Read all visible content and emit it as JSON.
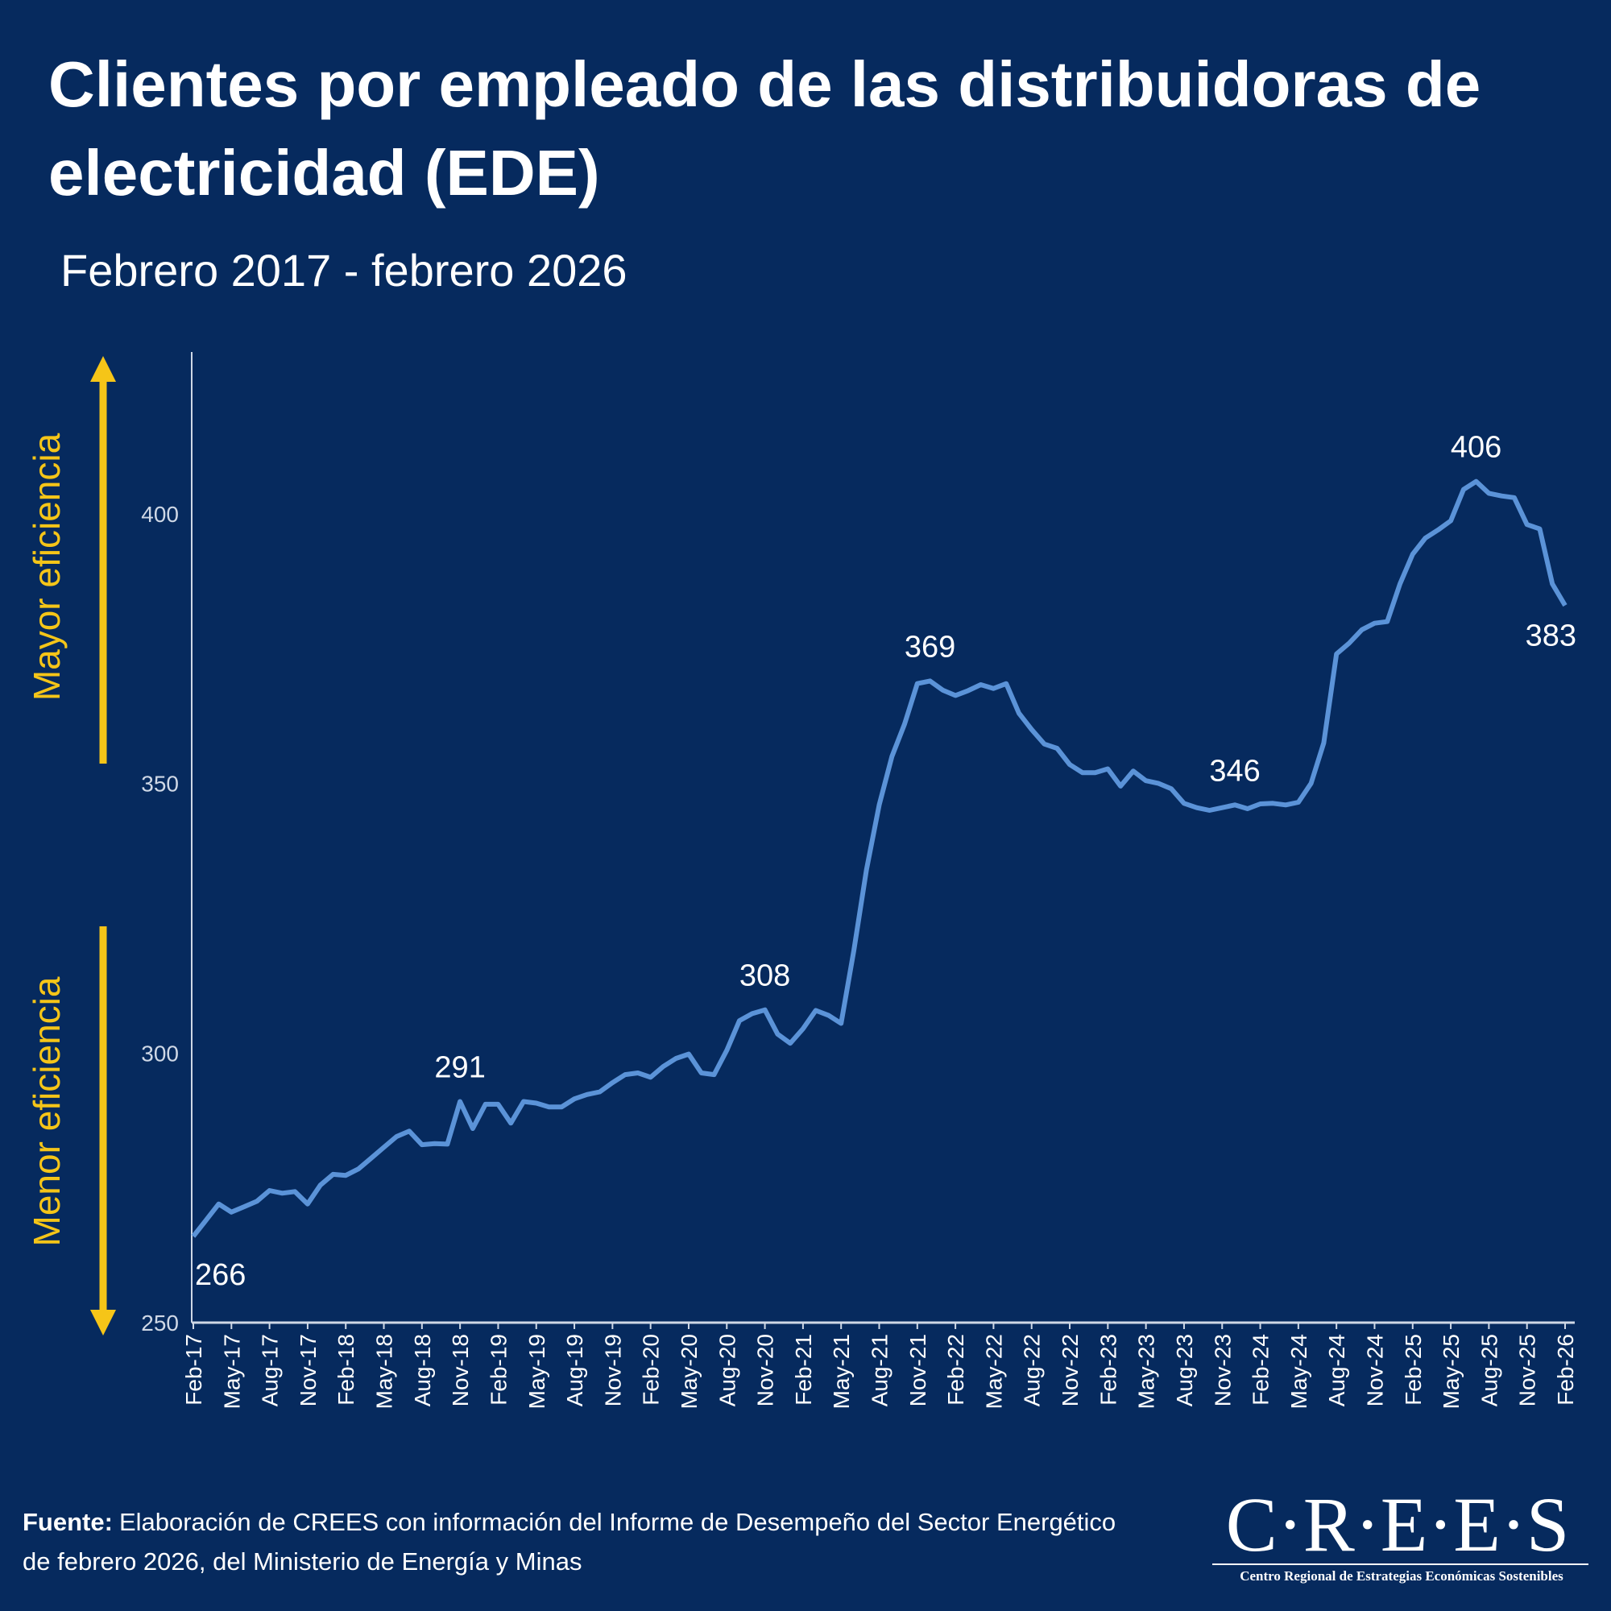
{
  "chart_data": {
    "type": "line",
    "title": [
      "Clientes por empleado de las distribuidoras de",
      "electricidad (EDE)"
    ],
    "subtitle": "Febrero 2017 - febrero 2026",
    "annotations": {
      "up": "Mayor eficiencia",
      "down": "Menor eficiencia"
    },
    "categories": [
      "Feb-17",
      null,
      null,
      "May-17",
      null,
      null,
      "Aug-17",
      null,
      null,
      "Nov-17",
      null,
      null,
      "Feb-18",
      null,
      null,
      "May-18",
      null,
      null,
      "Aug-18",
      null,
      null,
      "Nov-18",
      null,
      null,
      "Feb-19",
      null,
      null,
      "May-19",
      null,
      null,
      "Aug-19",
      null,
      null,
      "Nov-19",
      null,
      null,
      "Feb-20",
      null,
      null,
      "May-20",
      null,
      null,
      "Aug-20",
      null,
      null,
      "Nov-20",
      null,
      null,
      "Feb-21",
      null,
      null,
      "May-21",
      null,
      null,
      "Aug-21",
      null,
      null,
      "Nov-21",
      null,
      null,
      "Feb-22",
      null,
      null,
      "May-22",
      null,
      null,
      "Aug-22",
      null,
      null,
      "Nov-22",
      null,
      null,
      "Feb-23",
      null,
      null,
      "May-23",
      null,
      null,
      "Aug-23",
      null,
      null,
      "Nov-23",
      null,
      null,
      "Feb-24",
      null,
      null,
      "May-24",
      null,
      null,
      "Aug-24",
      null,
      null,
      "Nov-24",
      null,
      null,
      "Feb-25",
      null,
      null,
      "May-25",
      null,
      null,
      "Aug-25",
      null,
      null,
      "Nov-25",
      null,
      null,
      "Feb-26"
    ],
    "values": [
      266,
      269,
      272,
      270.5,
      271.5,
      272.5,
      274.5,
      274,
      274.3,
      272,
      275.5,
      277.5,
      277.3,
      278.5,
      280.5,
      282.5,
      284.5,
      285.5,
      283,
      283.2,
      283.1,
      291,
      286,
      290.5,
      290.5,
      287,
      291,
      290.7,
      290,
      290,
      291.5,
      292.3,
      292.8,
      294.5,
      296,
      296.3,
      295.5,
      297.5,
      299,
      299.8,
      296.3,
      296,
      300.5,
      306,
      307.3,
      308,
      303.5,
      301.8,
      304.5,
      307.9,
      307,
      305.5,
      319,
      334,
      346,
      355,
      361,
      368.5,
      369,
      367.3,
      366.3,
      367.2,
      368.3,
      367.6,
      368.5,
      363,
      360,
      357.3,
      356.5,
      353.5,
      352,
      352,
      352.7,
      349.5,
      352.3,
      350.5,
      350,
      349,
      346.3,
      345.5,
      345,
      345.5,
      346,
      345.3,
      346.2,
      346.3,
      346,
      346.5,
      350,
      357.5,
      374,
      376,
      378.5,
      379.7,
      380,
      387,
      392.5,
      395.5,
      397,
      398.7,
      404.5,
      406,
      403.8,
      403.3,
      403,
      398,
      397.2,
      387,
      383
    ],
    "value_labels": [
      {
        "index": 0,
        "label": "266"
      },
      {
        "index": 21,
        "label": "291"
      },
      {
        "index": 45,
        "label": "308"
      },
      {
        "index": 58,
        "label": "369"
      },
      {
        "index": 82,
        "label": "346"
      },
      {
        "index": 101,
        "label": "406"
      },
      {
        "index": 108,
        "label": "383"
      }
    ],
    "color": "#5b93d8",
    "ylim": [
      250,
      430
    ],
    "yticks": [
      250,
      300,
      350,
      400
    ],
    "grid": false
  },
  "footer": {
    "source_label": "Fuente:",
    "source_lines": [
      "Elaboración de CREES con información del Informe de Desempeño del Sector Energético",
      "de febrero 2026, del Ministerio de Energía y Minas"
    ]
  },
  "logo": {
    "name": "C·R·E·E·S",
    "tagline": "Centro Regional de Estrategias Económicas Sostenibles"
  }
}
